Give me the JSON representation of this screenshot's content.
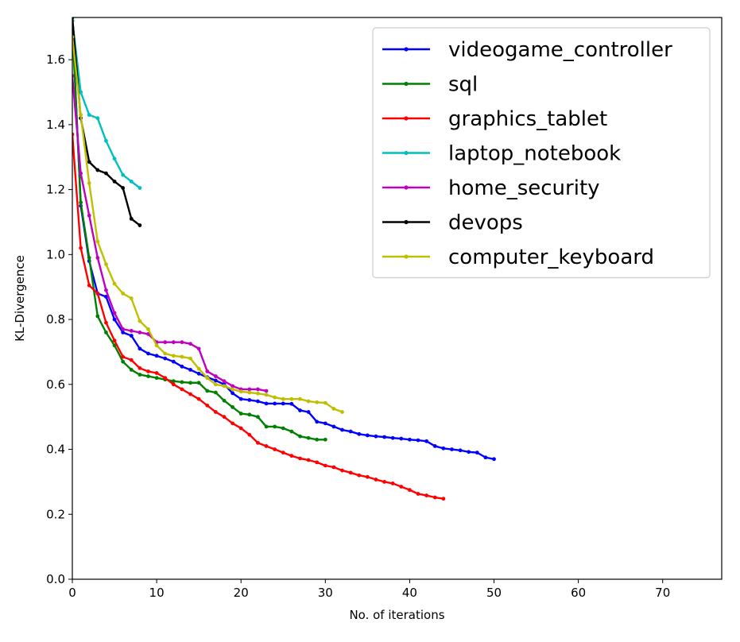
{
  "chart_data": {
    "type": "line",
    "title": "",
    "xlabel": "No. of iterations",
    "ylabel": "KL-Divergence",
    "xlim": [
      0,
      77
    ],
    "ylim": [
      0,
      1.73
    ],
    "xticks": [
      "0",
      "10",
      "20",
      "30",
      "40",
      "50",
      "60",
      "70"
    ],
    "yticks": [
      "0.0",
      "0.2",
      "0.4",
      "0.6",
      "0.8",
      "1.0",
      "1.2",
      "1.4",
      "1.6"
    ],
    "grid": false,
    "legend_position": "top-right",
    "series": [
      {
        "name": "videogame_controller",
        "color": "#0000ff",
        "values": [
          1.72,
          1.15,
          0.98,
          0.88,
          0.87,
          0.8,
          0.76,
          0.75,
          0.71,
          0.695,
          0.688,
          0.68,
          0.67,
          0.655,
          0.645,
          0.633,
          0.622,
          0.612,
          0.6,
          0.573,
          0.555,
          0.552,
          0.548,
          0.541,
          0.541,
          0.541,
          0.54,
          0.52,
          0.515,
          0.485,
          0.48,
          0.47,
          0.46,
          0.455,
          0.447,
          0.443,
          0.44,
          0.438,
          0.435,
          0.433,
          0.43,
          0.428,
          0.425,
          0.41,
          0.403,
          0.4,
          0.397,
          0.392,
          0.39,
          0.375,
          0.37
        ]
      },
      {
        "name": "sql",
        "color": "#008000",
        "values": [
          1.7,
          1.16,
          0.99,
          0.81,
          0.76,
          0.72,
          0.67,
          0.645,
          0.63,
          0.625,
          0.62,
          0.615,
          0.61,
          0.607,
          0.605,
          0.605,
          0.58,
          0.575,
          0.55,
          0.53,
          0.51,
          0.507,
          0.5,
          0.47,
          0.47,
          0.465,
          0.455,
          0.44,
          0.435,
          0.43,
          0.43
        ]
      },
      {
        "name": "graphics_tablet",
        "color": "#ff0000",
        "values": [
          1.37,
          1.02,
          0.905,
          0.88,
          0.79,
          0.735,
          0.685,
          0.675,
          0.65,
          0.64,
          0.635,
          0.62,
          0.6,
          0.585,
          0.57,
          0.555,
          0.535,
          0.515,
          0.5,
          0.48,
          0.465,
          0.445,
          0.42,
          0.41,
          0.4,
          0.39,
          0.38,
          0.372,
          0.367,
          0.36,
          0.35,
          0.345,
          0.335,
          0.328,
          0.32,
          0.315,
          0.307,
          0.3,
          0.295,
          0.285,
          0.275,
          0.263,
          0.258,
          0.252,
          0.248
        ]
      },
      {
        "name": "laptop_notebook",
        "color": "#00bfbf",
        "values": [
          1.72,
          1.5,
          1.43,
          1.42,
          1.35,
          1.295,
          1.245,
          1.225,
          1.205
        ]
      },
      {
        "name": "home_security",
        "color": "#bf00bf",
        "values": [
          1.55,
          1.25,
          1.12,
          0.99,
          0.89,
          0.82,
          0.77,
          0.765,
          0.76,
          0.755,
          0.73,
          0.73,
          0.73,
          0.73,
          0.725,
          0.71,
          0.64,
          0.625,
          0.61,
          0.595,
          0.585,
          0.585,
          0.585,
          0.58
        ]
      },
      {
        "name": "devops",
        "color": "#000000",
        "values": [
          1.73,
          1.42,
          1.285,
          1.26,
          1.25,
          1.225,
          1.205,
          1.11,
          1.09
        ]
      },
      {
        "name": "computer_keyboard",
        "color": "#bfbf00",
        "values": [
          1.67,
          1.43,
          1.22,
          1.04,
          0.97,
          0.91,
          0.88,
          0.865,
          0.795,
          0.77,
          0.72,
          0.695,
          0.688,
          0.685,
          0.68,
          0.648,
          0.62,
          0.6,
          0.595,
          0.585,
          0.578,
          0.575,
          0.572,
          0.568,
          0.56,
          0.555,
          0.555,
          0.555,
          0.548,
          0.545,
          0.543,
          0.525,
          0.515
        ]
      }
    ]
  }
}
